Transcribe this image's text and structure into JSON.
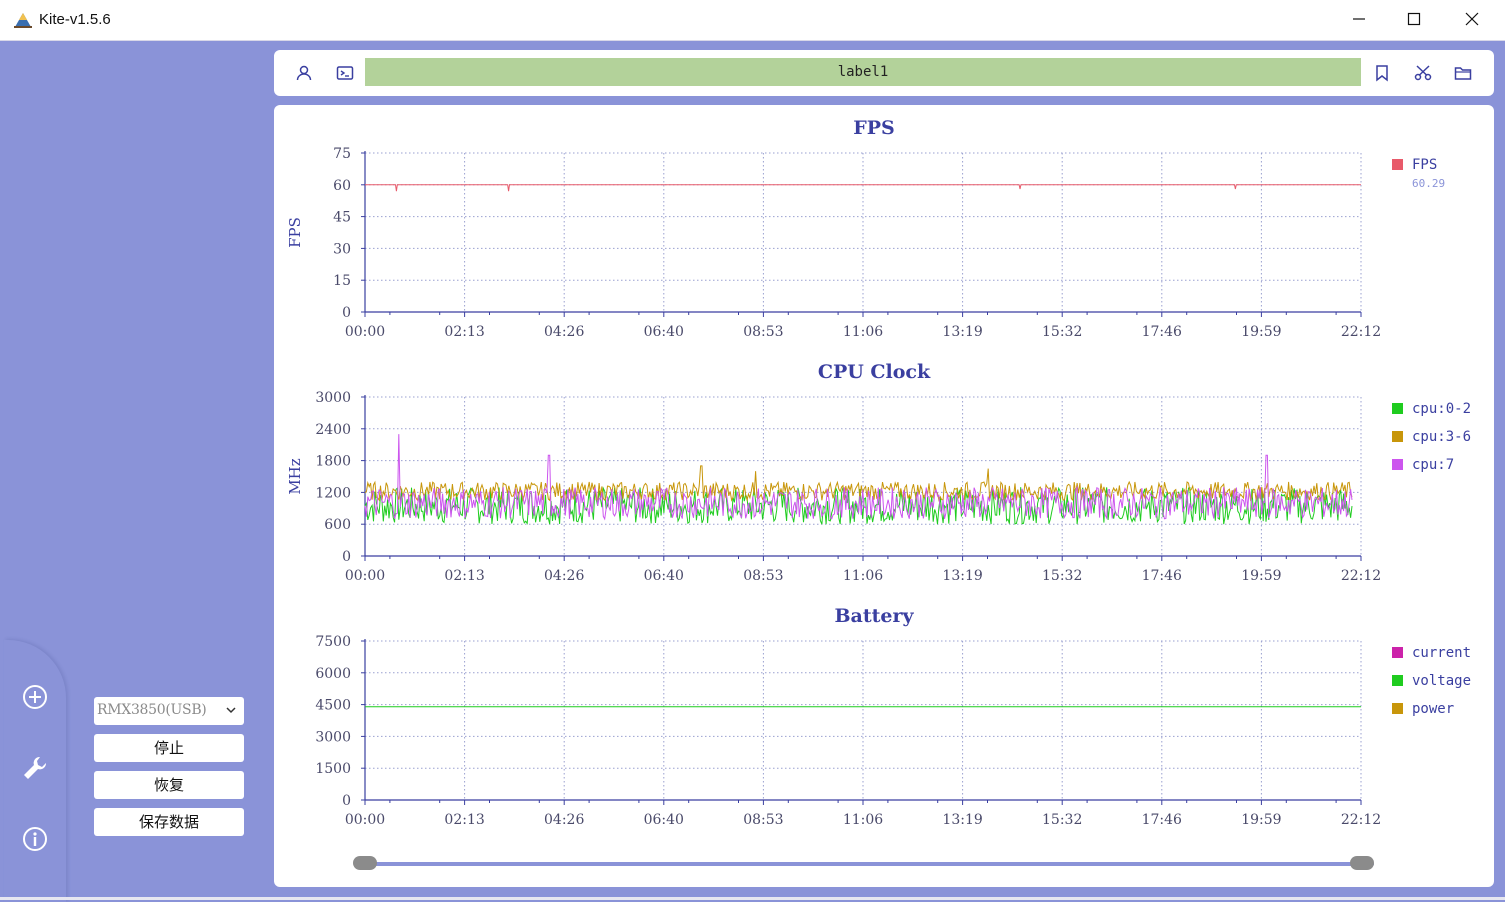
{
  "window": {
    "title": "Kite-v1.5.6",
    "app_icon": "kite-app-icon",
    "controls": [
      "minimize-icon",
      "maximize-icon",
      "close-icon"
    ]
  },
  "toolbar": {
    "left_icons": [
      "user-icon",
      "terminal-icon"
    ],
    "label": "label1",
    "right_icons": [
      "bookmark-icon",
      "scissors-icon",
      "folder-icon"
    ],
    "label_color": "#b3d29a"
  },
  "sidebar": {
    "icons": [
      "add-circle-icon",
      "wrench-icon",
      "info-icon"
    ]
  },
  "controls": {
    "device_selected": "RMX3850(USB)",
    "stop_label": "停止",
    "resume_label": "恢复",
    "save_label": "保存数据"
  },
  "theme": {
    "background": "#8a93d8",
    "axis_color": "#3a3fa0",
    "grid_color": "#9aa0d0"
  },
  "chart_data": [
    {
      "type": "line",
      "title": "FPS",
      "ylabel": "FPS",
      "ylim": [
        0,
        75
      ],
      "yticks": [
        "0",
        "15",
        "30",
        "45",
        "60",
        "75"
      ],
      "xticks": [
        "00:00",
        "02:13",
        "04:26",
        "06:40",
        "08:53",
        "11:06",
        "13:19",
        "15:32",
        "17:46",
        "19:59",
        "22:12"
      ],
      "grid": true,
      "legend": "right",
      "series": [
        {
          "name": "FPS",
          "color": "#e85a6a",
          "value_label": "60.29",
          "baseline": 60,
          "dips": [
            [
              0.7,
              57
            ],
            [
              3.2,
              57
            ],
            [
              14.6,
              58
            ],
            [
              19.4,
              58
            ]
          ]
        }
      ]
    },
    {
      "type": "line",
      "title": "CPU Clock",
      "ylabel": "MHz",
      "ylim": [
        0,
        3000
      ],
      "yticks": [
        "0",
        "600",
        "1200",
        "1800",
        "2400",
        "3000"
      ],
      "xticks": [
        "00:00",
        "02:13",
        "04:26",
        "06:40",
        "08:53",
        "11:06",
        "13:19",
        "15:32",
        "17:46",
        "19:59",
        "22:12"
      ],
      "grid": true,
      "legend": "right",
      "series": [
        {
          "name": "cpu:0-2",
          "color": "#1fcc1f",
          "range": [
            600,
            1300
          ]
        },
        {
          "name": "cpu:3-6",
          "color": "#c8960a",
          "range": [
            1050,
            1400
          ],
          "spikes": [
            [
              7.5,
              1700
            ],
            [
              8.7,
              1600
            ],
            [
              13.9,
              1650
            ]
          ]
        },
        {
          "name": "cpu:7",
          "color": "#cc55ee",
          "range": [
            700,
            1300
          ],
          "spikes": [
            [
              0.75,
              2300
            ],
            [
              4.1,
              1900
            ],
            [
              20.1,
              1900
            ]
          ]
        }
      ]
    },
    {
      "type": "line",
      "title": "Battery",
      "ylabel": "",
      "ylim": [
        0,
        7500
      ],
      "yticks": [
        "0",
        "1500",
        "3000",
        "4500",
        "6000",
        "7500"
      ],
      "xticks": [
        "00:00",
        "02:13",
        "04:26",
        "06:40",
        "08:53",
        "11:06",
        "13:19",
        "15:32",
        "17:46",
        "19:59",
        "22:12"
      ],
      "grid": true,
      "legend": "right",
      "series": [
        {
          "name": "current",
          "color": "#cc22aa"
        },
        {
          "name": "voltage",
          "color": "#1fcc1f",
          "baseline": 4400
        },
        {
          "name": "power",
          "color": "#c8960a"
        }
      ]
    }
  ],
  "range_slider": {
    "start": 0.0,
    "end": 1.0
  }
}
